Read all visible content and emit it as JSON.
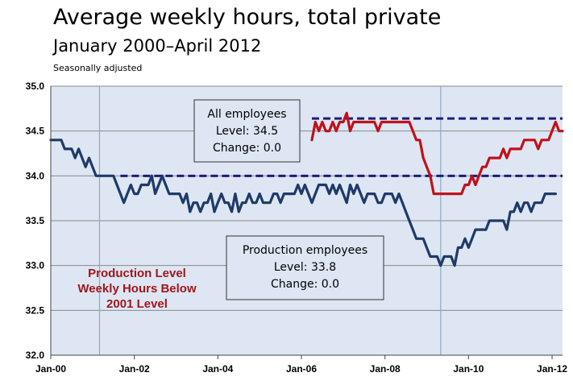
{
  "header": {
    "title": "Average weekly hours, total private",
    "subtitle": "January 2000–April 2012",
    "note": "Seasonally adjusted"
  },
  "chart_data": {
    "type": "line",
    "title": "Average weekly hours, total private",
    "subtitle": "January 2000–April 2012",
    "note": "Seasonally adjusted",
    "xlabel": "",
    "ylabel": "",
    "ylim": [
      32.0,
      35.0
    ],
    "y_ticks": [
      "35.0",
      "34.5",
      "34.0",
      "33.5",
      "33.0",
      "32.5",
      "32.0"
    ],
    "x_ticks": [
      {
        "label": "Jan-00",
        "t": 0
      },
      {
        "label": "Jan-02",
        "t": 24
      },
      {
        "label": "Jan-04",
        "t": 48
      },
      {
        "label": "Jan-06",
        "t": 72
      },
      {
        "label": "Jan-08",
        "t": 96
      },
      {
        "label": "Jan-10",
        "t": 120
      },
      {
        "label": "Jan-12",
        "t": 144
      }
    ],
    "x_unit": "months since Jan-2000",
    "x_max": 147,
    "grid": "horizontal",
    "colors": {
      "plot_bg": "#dde6f2",
      "production": "#1f3a68",
      "all": "#c0111b",
      "reference": "#1c1c7a",
      "gridline": "#8a8a8a",
      "annotation": "#a0161c",
      "vline": "#8fa8c8"
    },
    "vertical_markers_t": [
      14,
      112
    ],
    "reference_lines": [
      {
        "series": "All employees",
        "value": 34.64,
        "from_t": 75,
        "to_t": 147
      },
      {
        "series": "Production employees",
        "value": 34.0,
        "from_t": 20,
        "to_t": 147
      }
    ],
    "series": [
      {
        "name": "Production employees",
        "start_t": 0,
        "values": [
          34.4,
          34.4,
          34.4,
          34.4,
          34.3,
          34.3,
          34.3,
          34.2,
          34.3,
          34.2,
          34.1,
          34.2,
          34.1,
          34.0,
          34.0,
          34.0,
          34.0,
          34.0,
          34.0,
          33.9,
          33.8,
          33.7,
          33.8,
          33.9,
          33.8,
          33.8,
          33.9,
          33.9,
          33.9,
          34.0,
          33.8,
          33.9,
          34.0,
          33.9,
          33.8,
          33.8,
          33.8,
          33.8,
          33.7,
          33.8,
          33.6,
          33.7,
          33.7,
          33.6,
          33.7,
          33.7,
          33.8,
          33.6,
          33.7,
          33.8,
          33.7,
          33.7,
          33.6,
          33.8,
          33.6,
          33.7,
          33.7,
          33.8,
          33.7,
          33.7,
          33.8,
          33.7,
          33.7,
          33.7,
          33.8,
          33.8,
          33.7,
          33.8,
          33.8,
          33.8,
          33.8,
          33.9,
          33.8,
          33.9,
          33.8,
          33.7,
          33.8,
          33.9,
          33.9,
          33.9,
          33.8,
          33.9,
          33.8,
          33.9,
          33.8,
          33.7,
          33.9,
          33.8,
          33.9,
          33.8,
          33.7,
          33.8,
          33.8,
          33.8,
          33.7,
          33.7,
          33.8,
          33.8,
          33.8,
          33.7,
          33.8,
          33.7,
          33.6,
          33.5,
          33.4,
          33.3,
          33.3,
          33.3,
          33.2,
          33.1,
          33.1,
          33.1,
          33.0,
          33.1,
          33.1,
          33.1,
          33.0,
          33.2,
          33.2,
          33.3,
          33.2,
          33.3,
          33.4,
          33.4,
          33.4,
          33.4,
          33.5,
          33.5,
          33.5,
          33.5,
          33.5,
          33.4,
          33.6,
          33.6,
          33.7,
          33.6,
          33.7,
          33.7,
          33.6,
          33.7,
          33.7,
          33.7,
          33.8,
          33.8,
          33.8,
          33.8
        ]
      },
      {
        "name": "All employees",
        "start_t": 75,
        "values": [
          34.4,
          34.6,
          34.5,
          34.6,
          34.5,
          34.5,
          34.6,
          34.5,
          34.6,
          34.6,
          34.7,
          34.5,
          34.6,
          34.6,
          34.6,
          34.6,
          34.6,
          34.6,
          34.6,
          34.5,
          34.6,
          34.6,
          34.6,
          34.6,
          34.6,
          34.6,
          34.6,
          34.6,
          34.6,
          34.5,
          34.4,
          34.4,
          34.2,
          34.1,
          34.0,
          33.8,
          33.8,
          33.8,
          33.8,
          33.8,
          33.8,
          33.8,
          33.8,
          33.8,
          33.9,
          33.9,
          34.0,
          33.9,
          34.0,
          34.1,
          34.1,
          34.2,
          34.2,
          34.2,
          34.2,
          34.3,
          34.2,
          34.3,
          34.3,
          34.3,
          34.3,
          34.4,
          34.4,
          34.4,
          34.4,
          34.3,
          34.4,
          34.4,
          34.4,
          34.5,
          34.6,
          34.5,
          34.5
        ]
      }
    ],
    "annotations": [
      {
        "name": "all-employees-box",
        "lines": [
          "All employees",
          "Level: 34.5",
          "Change: 0.0"
        ]
      },
      {
        "name": "production-employees-box",
        "lines": [
          "Production employees",
          "Level: 33.8",
          "Change: 0.0"
        ]
      },
      {
        "name": "production-level-note",
        "lines": [
          "Production Level",
          "Weekly Hours Below",
          "2001 Level"
        ]
      }
    ]
  }
}
